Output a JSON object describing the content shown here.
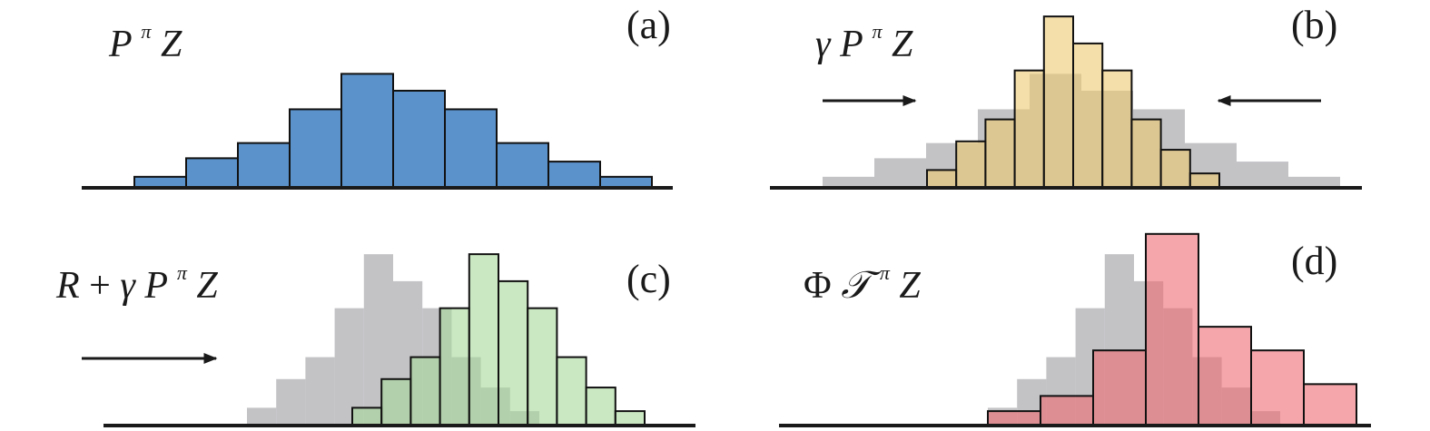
{
  "figure": {
    "panels": [
      {
        "id": "a",
        "label": "(a)",
        "expression": {
          "parts": [
            {
              "text": "P",
              "kind": "var"
            },
            {
              "text": "π",
              "kind": "sup"
            },
            {
              "text": " Z",
              "kind": "var"
            }
          ]
        },
        "arrows": [],
        "background_bars": [],
        "bars": [
          0.6,
          1.7,
          2.6,
          4.6,
          6.7,
          5.7,
          4.6,
          2.6,
          1.5,
          0.6
        ],
        "color": "#5b92cb",
        "overlay": false
      },
      {
        "id": "b",
        "label": "(b)",
        "expression": {
          "parts": [
            {
              "text": "γ",
              "kind": "var"
            },
            {
              "text": "P",
              "kind": "var"
            },
            {
              "text": "π",
              "kind": "sup"
            },
            {
              "text": " Z",
              "kind": "var"
            }
          ]
        },
        "arrows": [
          "right",
          "left"
        ],
        "background_bars": [
          0.6,
          1.7,
          2.6,
          4.6,
          6.7,
          5.7,
          4.6,
          2.6,
          1.5,
          0.6
        ],
        "bars": [
          1.0,
          2.7,
          4.0,
          6.9,
          10.1,
          8.5,
          6.9,
          4.0,
          2.2,
          0.8
        ],
        "color": "#ecc870",
        "overlay": true
      },
      {
        "id": "c",
        "label": "(c)",
        "expression": {
          "parts": [
            {
              "text": "R",
              "kind": "var"
            },
            {
              "text": " + ",
              "kind": "op"
            },
            {
              "text": "γ",
              "kind": "var"
            },
            {
              "text": "P",
              "kind": "var"
            },
            {
              "text": "π",
              "kind": "sup"
            },
            {
              "text": " Z",
              "kind": "var"
            }
          ]
        },
        "arrows": [
          "right-long"
        ],
        "background_bars": [
          1.0,
          2.7,
          4.0,
          6.9,
          10.1,
          8.5,
          6.9,
          4.0,
          2.2,
          0.8
        ],
        "bars": [
          1.0,
          2.7,
          4.0,
          6.9,
          10.1,
          8.5,
          6.9,
          4.0,
          2.2,
          0.8
        ],
        "color": "#a6d89a",
        "overlay": true
      },
      {
        "id": "d",
        "label": "(d)",
        "expression": {
          "parts": [
            {
              "text": "Φ",
              "kind": "upright"
            },
            {
              "text": "𝒯",
              "kind": "var"
            },
            {
              "text": "π",
              "kind": "sup"
            },
            {
              "text": " Z",
              "kind": "var"
            }
          ]
        },
        "arrows": [],
        "background_bars": [
          1.0,
          2.7,
          4.0,
          6.9,
          10.1,
          8.5,
          6.9,
          4.0,
          2.2,
          0.8
        ],
        "bars": [
          0.8,
          1.7,
          4.4,
          11.3,
          5.8,
          4.4,
          2.4
        ],
        "color": "#ef6a72",
        "overlay": true
      }
    ]
  }
}
